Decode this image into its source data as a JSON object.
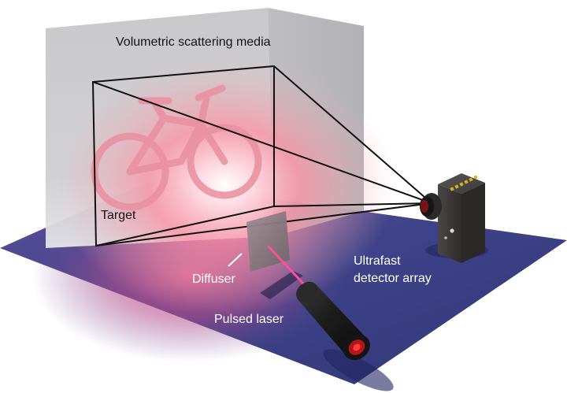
{
  "labels": {
    "media": "Volumetric scattering media",
    "target": "Target",
    "diffuser": "Diffuser",
    "detector_line1": "Ultrafast",
    "detector_line2": "detector array",
    "laser": "Pulsed laser"
  },
  "colors": {
    "floor": "#3a3f86",
    "floor_glow": "#c04a86",
    "media_wall": "#c8c8cc",
    "scatter_glow": "#ff6f86",
    "laser_beam": "#ff4f9a",
    "camera_body": "#3d3a3a",
    "sensor": "#d9b21c"
  },
  "icons": {
    "target": "bicycle-icon",
    "detector": "camera-icon",
    "laser": "laser-icon"
  }
}
